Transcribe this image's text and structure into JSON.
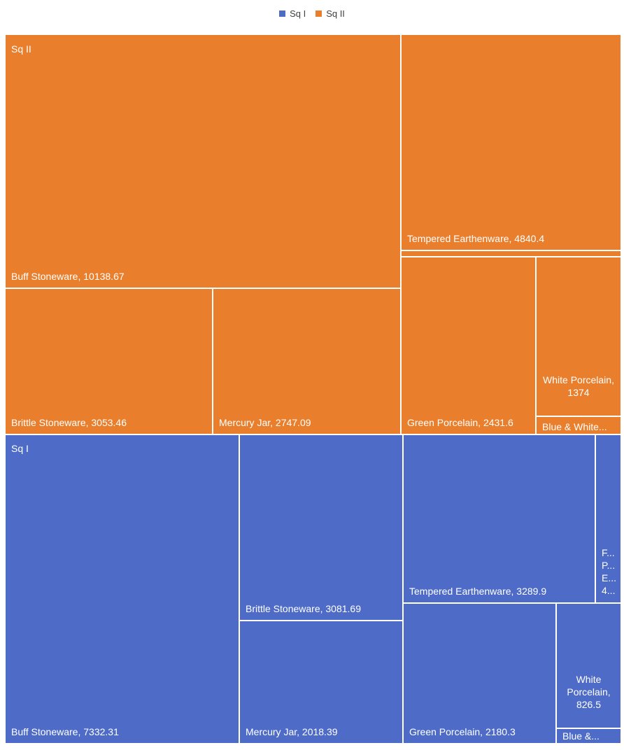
{
  "legend": [
    {
      "name": "Sq I",
      "color": "#4E6CC7"
    },
    {
      "name": "Sq II",
      "color": "#E97F2C"
    }
  ],
  "chart_data": {
    "type": "treemap",
    "groups": [
      {
        "name": "Sq II",
        "color": "#E97F2C",
        "items": [
          {
            "name": "Buff Stoneware",
            "value": 10138.67,
            "label": "Buff Stoneware, 10138.67"
          },
          {
            "name": "Tempered Earthenware",
            "value": 4840.4,
            "label": "Tempered Earthenware, 4840.4"
          },
          {
            "name": "Brittle Stoneware",
            "value": 3053.46,
            "label": "Brittle Stoneware, 3053.46"
          },
          {
            "name": "Mercury Jar",
            "value": 2747.09,
            "label": "Mercury Jar, 2747.09"
          },
          {
            "name": "Green Porcelain",
            "value": 2431.6,
            "label": "Green Porcelain, 2431.6"
          },
          {
            "name": "White Porcelain",
            "value": 1374,
            "label": "White Porcelain, 1374"
          },
          {
            "name": "Blue & White",
            "value": null,
            "label": "Blue & White..."
          },
          {
            "name": "",
            "value": null,
            "label": ""
          }
        ]
      },
      {
        "name": "Sq I",
        "color": "#4E6CC7",
        "items": [
          {
            "name": "Buff Stoneware",
            "value": 7332.31,
            "label": "Buff Stoneware, 7332.31"
          },
          {
            "name": "Brittle Stoneware",
            "value": 3081.69,
            "label": "Brittle Stoneware, 3081.69"
          },
          {
            "name": "Mercury Jar",
            "value": 2018.39,
            "label": "Mercury Jar, 2018.39"
          },
          {
            "name": "Tempered Earthenware",
            "value": 3289.9,
            "label": "Tempered Earthenware, 3289.9"
          },
          {
            "name": "",
            "value": null,
            "label": "F... P... E... 4..."
          },
          {
            "name": "Green Porcelain",
            "value": 2180.3,
            "label": "Green Porcelain, 2180.3"
          },
          {
            "name": "White Porcelain",
            "value": 826.5,
            "label": "White Porcelain, 826.5"
          },
          {
            "name": "Blue &",
            "value": null,
            "label": "Blue &..."
          }
        ]
      }
    ],
    "legend_position": "top"
  }
}
